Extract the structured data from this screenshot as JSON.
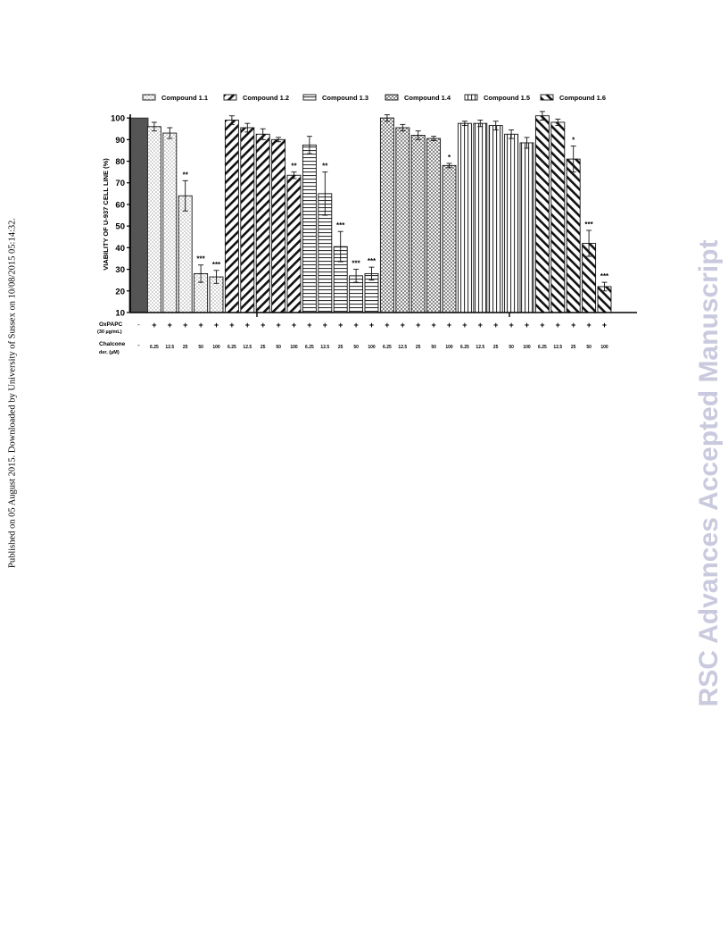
{
  "sidebar_note": "Published on 05 August 2015. Downloaded by University of Sussex on 10/08/2015 05:14:32.",
  "watermark": "RSC Advances Accepted Manuscript",
  "chart_data": {
    "type": "bar",
    "title": "",
    "ylabel": "VIABILITY OF U-937 CELL LINE (%)",
    "ylim": [
      10,
      105
    ],
    "yticks": [
      10,
      20,
      30,
      40,
      50,
      60,
      70,
      80,
      90,
      100
    ],
    "grid": true,
    "legend_position": "top",
    "legend": [
      "Compound 1.1",
      "Compound 1.2",
      "Compound 1.3",
      "Compound 1.4",
      "Compound 1.5",
      "Compound 1.6"
    ],
    "control": {
      "value": 100,
      "oxpapc": "-",
      "conc": "-"
    },
    "row_labels": {
      "oxpapc": [
        "OxPAPC",
        "(30 µg/mL)"
      ],
      "conc": [
        "Chalcone",
        "der. (µM)"
      ]
    },
    "concentrations": [
      "6.25",
      "12.5",
      "25",
      "50",
      "100"
    ],
    "series": [
      {
        "name": "Compound 1.1",
        "pattern": "dots",
        "values": [
          96,
          93,
          64,
          28,
          26.5
        ],
        "errors": [
          2,
          2.5,
          7,
          4,
          3
        ],
        "marks": [
          "",
          "",
          "**",
          "***",
          "***"
        ]
      },
      {
        "name": "Compound 1.2",
        "pattern": "diag",
        "values": [
          99,
          95.5,
          92.5,
          90,
          73.5
        ],
        "errors": [
          2,
          2,
          2.5,
          1,
          1.5
        ],
        "marks": [
          "",
          "",
          "",
          "",
          "**"
        ]
      },
      {
        "name": "Compound 1.3",
        "pattern": "hlines",
        "values": [
          87.5,
          65,
          40.5,
          27,
          28
        ],
        "errors": [
          4,
          10,
          7,
          3,
          3
        ],
        "marks": [
          "",
          "**",
          "***",
          "***",
          "***"
        ]
      },
      {
        "name": "Compound 1.4",
        "pattern": "cross",
        "values": [
          100,
          95.5,
          92,
          90.5,
          78
        ],
        "errors": [
          1.5,
          1.5,
          2,
          1,
          1
        ],
        "marks": [
          "",
          "",
          "",
          "",
          "*"
        ]
      },
      {
        "name": "Compound 1.5",
        "pattern": "vlines",
        "values": [
          97.5,
          97.5,
          96.5,
          92.5,
          88.5
        ],
        "errors": [
          1,
          1.5,
          2,
          2,
          2.5
        ],
        "marks": [
          "",
          "",
          "",
          "",
          ""
        ]
      },
      {
        "name": "Compound 1.6",
        "pattern": "backdiag",
        "values": [
          101,
          98,
          81,
          42,
          22
        ],
        "errors": [
          2,
          1.5,
          6,
          6,
          2
        ],
        "marks": [
          "",
          "",
          "*",
          "***",
          "***"
        ]
      }
    ]
  }
}
